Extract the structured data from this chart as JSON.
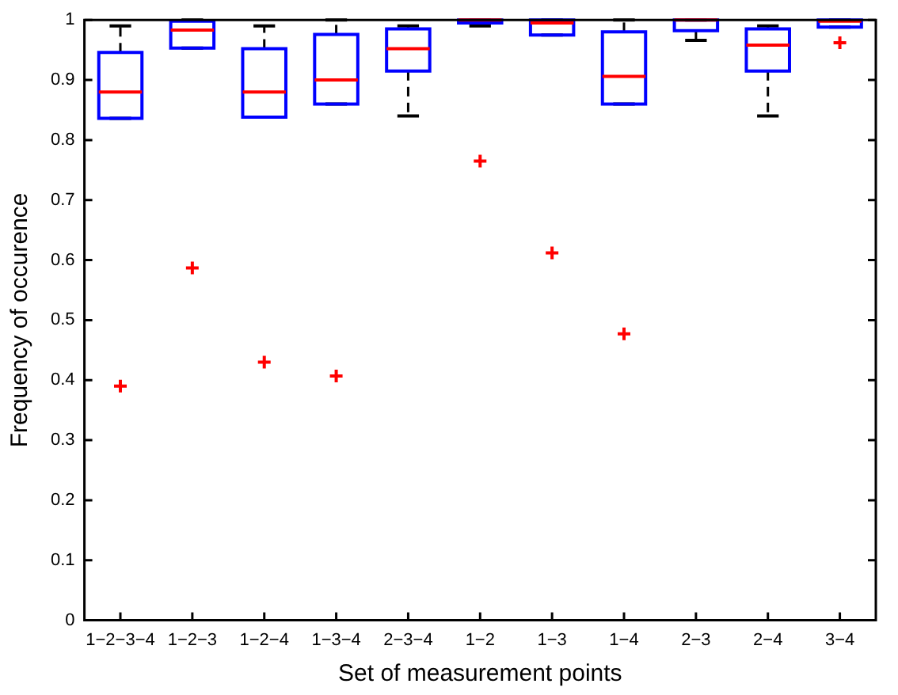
{
  "chart_data": {
    "type": "box",
    "xlabel": "Set of measurement points",
    "ylabel": "Frequency of occurence",
    "categories": [
      "1−2−3−4",
      "1−2−3",
      "1−2−4",
      "1−3−4",
      "2−3−4",
      "1−2",
      "1−3",
      "1−4",
      "2−3",
      "2−4",
      "3−4"
    ],
    "color": "#0000ff",
    "boxes": [
      {
        "low": 0.836,
        "q1": 0.836,
        "median": 0.88,
        "q3": 0.946,
        "high": 0.99,
        "outliers": [
          0.39
        ]
      },
      {
        "low": 0.953,
        "q1": 0.953,
        "median": 0.983,
        "q3": 0.998,
        "high": 1.0,
        "outliers": [
          0.587
        ]
      },
      {
        "low": 0.838,
        "q1": 0.838,
        "median": 0.88,
        "q3": 0.952,
        "high": 0.99,
        "outliers": [
          0.43
        ]
      },
      {
        "low": 0.86,
        "q1": 0.86,
        "median": 0.9,
        "q3": 0.976,
        "high": 1.0,
        "outliers": [
          0.407
        ]
      },
      {
        "low": 0.84,
        "q1": 0.915,
        "median": 0.952,
        "q3": 0.985,
        "high": 0.99
      },
      {
        "low": 0.99,
        "q1": 0.995,
        "median": 1.0,
        "q3": 1.0,
        "high": 1.0,
        "outliers": [
          0.765
        ]
      },
      {
        "low": 0.975,
        "q1": 0.975,
        "median": 0.995,
        "q3": 1.0,
        "high": 1.0,
        "outliers": [
          0.612
        ]
      },
      {
        "low": 0.86,
        "q1": 0.86,
        "median": 0.906,
        "q3": 0.98,
        "high": 1.0,
        "outliers": [
          0.477
        ]
      },
      {
        "low": 0.966,
        "q1": 0.982,
        "median": 1.0,
        "q3": 1.0,
        "high": 1.0
      },
      {
        "low": 0.84,
        "q1": 0.915,
        "median": 0.958,
        "q3": 0.985,
        "high": 0.99
      },
      {
        "low": 0.988,
        "q1": 0.988,
        "median": 0.998,
        "q3": 1.0,
        "high": 1.0,
        "outliers": [
          0.962
        ]
      }
    ],
    "ylim": [
      0,
      1
    ],
    "yticks": [
      0,
      0.1,
      0.2,
      0.3,
      0.4,
      0.5,
      0.6,
      0.7,
      0.8,
      0.9,
      1
    ],
    "grid": false,
    "legend": false,
    "marker": "cross"
  }
}
